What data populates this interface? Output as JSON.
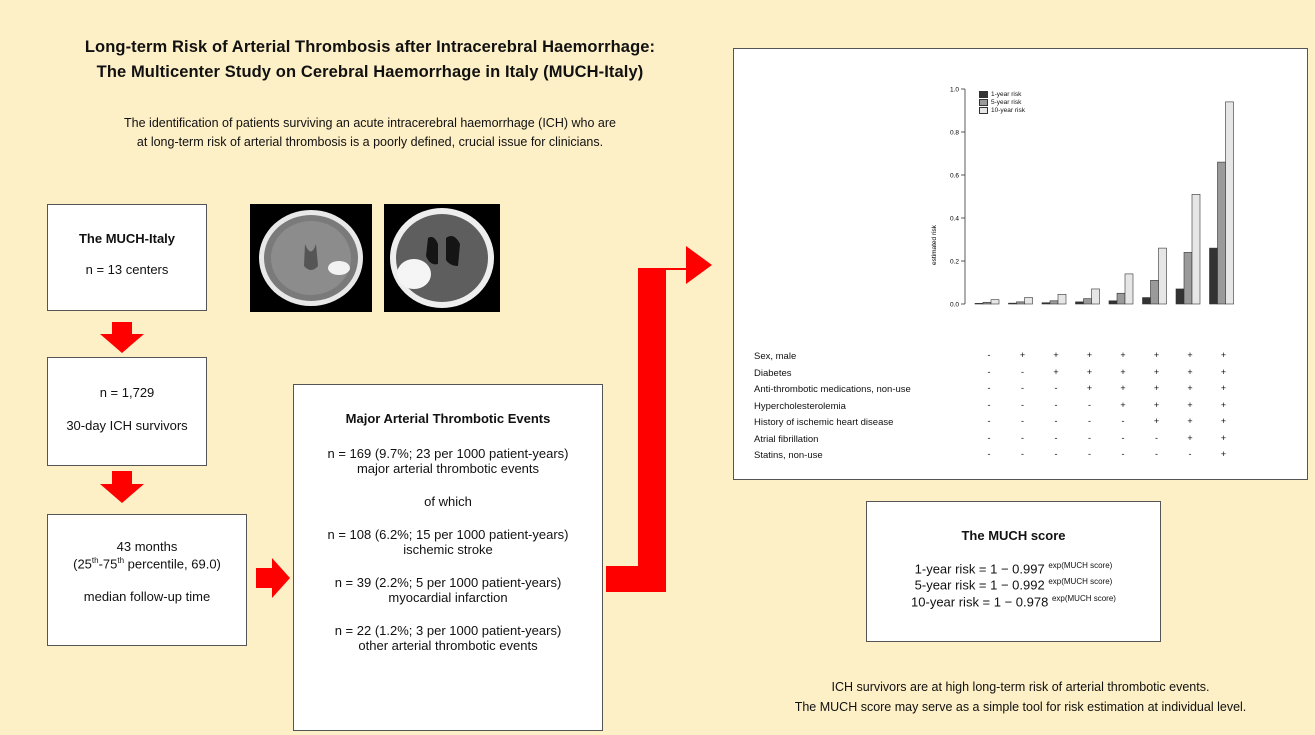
{
  "title": {
    "line1": "Long-term Risk of Arterial Thrombosis after Intracerebral Haemorrhage:",
    "line2": "The Multicenter Study on Cerebral Haemorrhage in Italy (MUCH-Italy)"
  },
  "intro": {
    "line1": "The identification of patients surviving an acute intracerebral haemorrhage (ICH) who are",
    "line2": "at long-term risk of arterial thrombosis is a poorly defined, crucial issue for clinicians."
  },
  "study_box": {
    "title": "The MUCH-Italy",
    "centers": "n = 13 centers"
  },
  "survivors_box": {
    "n": "n = 1,729",
    "label": "30-day ICH survivors"
  },
  "followup_box": {
    "months": "43 months",
    "range_prefix": "(25",
    "sup1": "th",
    "range_mid": "-75",
    "sup2": "th",
    "range_suffix": " percentile, 69.0)",
    "label": "median follow-up time"
  },
  "events_box": {
    "title": "Major Arterial Thrombotic  Events",
    "total_line1": "n = 169 (9.7%; 23 per 1000 patient-years)",
    "total_line2": "major arterial thrombotic  events",
    "of_which": "of which",
    "stroke_line1": "n = 108 (6.2%; 15 per 1000 patient-years)",
    "stroke_line2": "ischemic stroke",
    "mi_line1": "n = 39 (2.2%; 5 per 1000 patient-years)",
    "mi_line2": "myocardial infarction",
    "other_line1": "n = 22 (1.2%; 3 per 1000 patient-years)",
    "other_line2": "other arterial thrombotic events"
  },
  "score_box": {
    "title": "The MUCH score",
    "rows": [
      {
        "text": "1-year risk = 1 − 0.997 ",
        "exp": "exp(MUCH score)"
      },
      {
        "text": "5-year risk = 1 − 0.992 ",
        "exp": "exp(MUCH score)"
      },
      {
        "text": "10-year risk = 1 − 0.978 ",
        "exp": "exp(MUCH score)"
      }
    ]
  },
  "conclusion": {
    "line1": "ICH survivors are at high long-term risk of arterial  thrombotic  events.",
    "line2": "The MUCH score may serve as a simple tool for risk estimation at individual level."
  },
  "colors": {
    "background": "#fdefc6",
    "arrow": "#ff0000",
    "bar_1yr": "#333333",
    "bar_5yr": "#9a9a9a",
    "bar_10yr": "#e6e6e6"
  },
  "chart_data": {
    "type": "bar",
    "ylabel": "estimated risk",
    "ylim": [
      0,
      1.0
    ],
    "yticks": [
      "0.0",
      "0.2",
      "0.4",
      "0.6",
      "0.8",
      "1.0"
    ],
    "legend_position": "top-left",
    "categories": [
      "1",
      "2",
      "3",
      "4",
      "5",
      "6",
      "7",
      "8"
    ],
    "series": [
      {
        "name": "1-year risk",
        "values": [
          0.003,
          0.004,
          0.006,
          0.01,
          0.015,
          0.03,
          0.07,
          0.26
        ]
      },
      {
        "name": "5-year risk",
        "values": [
          0.008,
          0.01,
          0.015,
          0.025,
          0.05,
          0.11,
          0.24,
          0.66
        ]
      },
      {
        "name": "10-year risk",
        "values": [
          0.02,
          0.03,
          0.045,
          0.07,
          0.14,
          0.26,
          0.51,
          0.94
        ]
      }
    ],
    "factors": [
      {
        "label": "Sex, male",
        "marks": [
          "-",
          "+",
          "+",
          "+",
          "+",
          "+",
          "+",
          "+"
        ]
      },
      {
        "label": "Diabetes",
        "marks": [
          "-",
          "-",
          "+",
          "+",
          "+",
          "+",
          "+",
          "+"
        ]
      },
      {
        "label": "Anti-thrombotic medications, non-use",
        "marks": [
          "-",
          "-",
          "-",
          "+",
          "+",
          "+",
          "+",
          "+"
        ]
      },
      {
        "label": "Hypercholesterolemia",
        "marks": [
          "-",
          "-",
          "-",
          "-",
          "+",
          "+",
          "+",
          "+"
        ]
      },
      {
        "label": "History of ischemic heart disease",
        "marks": [
          "-",
          "-",
          "-",
          "-",
          "-",
          "+",
          "+",
          "+"
        ]
      },
      {
        "label": "Atrial fibrillation",
        "marks": [
          "-",
          "-",
          "-",
          "-",
          "-",
          "-",
          "+",
          "+"
        ]
      },
      {
        "label": "Statins, non-use",
        "marks": [
          "-",
          "-",
          "-",
          "-",
          "-",
          "-",
          "-",
          "+"
        ]
      }
    ]
  }
}
